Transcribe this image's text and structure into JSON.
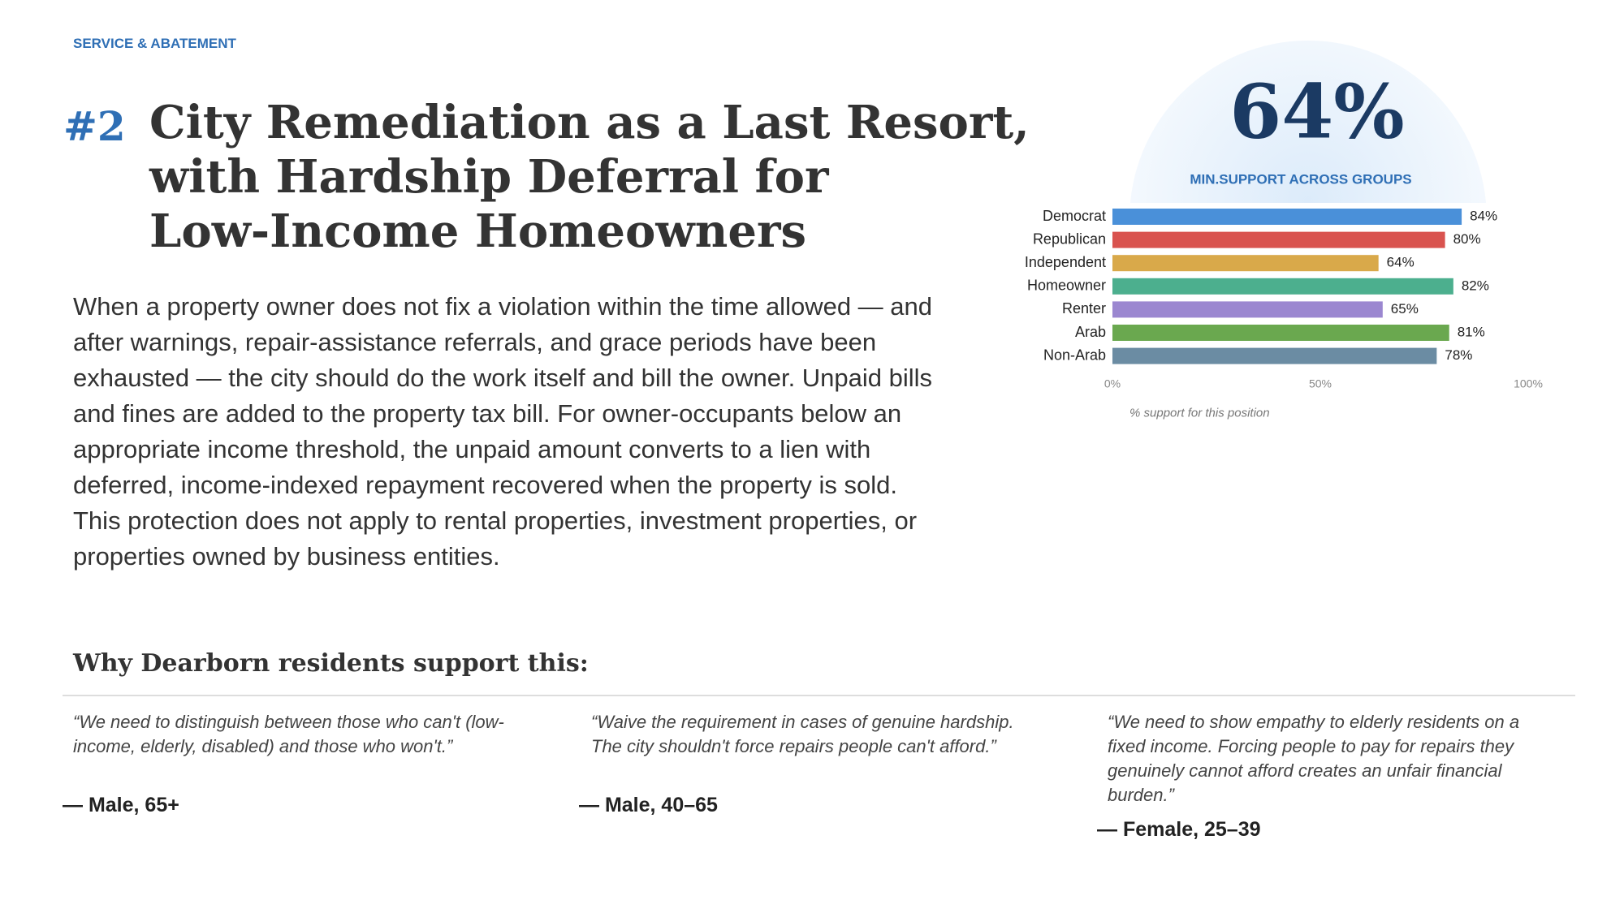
{
  "header": {
    "section": "SERVICE & ABATEMENT",
    "number": "#2",
    "title_lines": [
      "City Remediation as a Last Resort,",
      "with Hardship Deferral for",
      "Low-Income Homeowners"
    ]
  },
  "body": "When a property owner does not fix a violation within the time allowed — and after warnings, repair-assistance referrals, and grace periods have been exhausted — the city should do the work itself and bill the owner. Unpaid bills and fines are added to the property tax bill. For owner-occupants below an appropriate income threshold, the unpaid amount converts to a lien with deferred, income-indexed repayment recovered when the property is sold. This protection does not apply to rental properties, investment properties, or properties owned by business entities.",
  "summary": {
    "headline": "64%",
    "label": "MIN.SUPPORT ACROSS GROUPS"
  },
  "chart_data": {
    "type": "hbar",
    "categories": [
      "Democrat",
      "Republican",
      "Independent",
      "Homeowner",
      "Renter",
      "Arab",
      "Non-Arab"
    ],
    "values": [
      84,
      80,
      64,
      82,
      65,
      81,
      78
    ],
    "value_labels": [
      "84%",
      "80%",
      "64%",
      "82%",
      "65%",
      "81%",
      "78%"
    ],
    "colors": [
      "#4a90d9",
      "#d9534f",
      "#d9a94a",
      "#4caf8e",
      "#9b87d0",
      "#6aa84f",
      "#6b8ca3"
    ],
    "xlim": [
      0,
      100
    ],
    "xticks": [
      {
        "value": 0,
        "label": "0%"
      },
      {
        "value": 50,
        "label": "50%"
      },
      {
        "value": 100,
        "label": "100%"
      }
    ],
    "xlabel": "% support for this position"
  },
  "quotes_heading": "Why Dearborn residents support this:",
  "quotes": [
    {
      "text": "“We need to distinguish between those who can't (low-income, elderly, disabled) and those who won't.”",
      "author": "— Male, 65+"
    },
    {
      "text": "“Waive the requirement in cases of genuine hardship. The city shouldn't force repairs people can't afford.”",
      "author": "— Male, 40–65"
    },
    {
      "text": "“We need to show empathy to elderly residents on a fixed income. Forcing people to pay for repairs they genuinely cannot afford creates an unfair financial burden.”",
      "author": "— Female, 25–39"
    }
  ]
}
